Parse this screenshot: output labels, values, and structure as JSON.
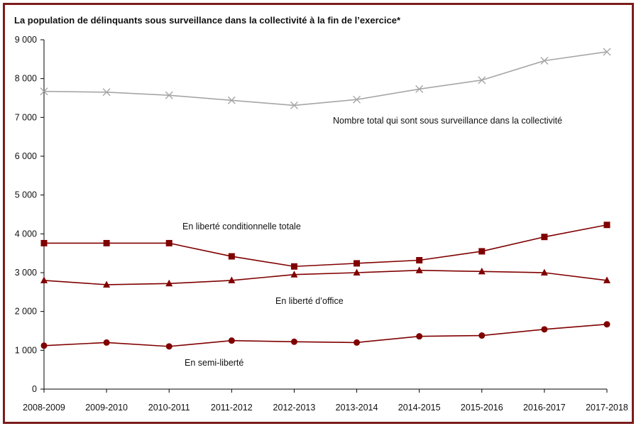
{
  "chart_data": {
    "type": "line",
    "title": "La population de délinquants sous surveillance dans la collectivité à la fin de l’exercice*",
    "xlabel": "",
    "ylabel": "",
    "ylim": [
      0,
      9000
    ],
    "y_ticks": [
      "0",
      "1 000",
      "2 000",
      "3 000",
      "4 000",
      "5 000",
      "6 000",
      "7 000",
      "8 000",
      "9 000"
    ],
    "y_tick_values": [
      0,
      1000,
      2000,
      3000,
      4000,
      5000,
      6000,
      7000,
      8000,
      9000
    ],
    "grid": false,
    "categories": [
      "2008-2009",
      "2009-2010",
      "2010-2011",
      "2011-2012",
      "2012-2013",
      "2013-2014",
      "2014-2015",
      "2015-2016",
      "2016-2017",
      "2017-2018"
    ],
    "series": [
      {
        "name": "Nombre total qui sont sous surveillance dans la collectivité",
        "marker": "x",
        "color": "#a6a6a6",
        "values": [
          7670,
          7650,
          7570,
          7440,
          7310,
          7460,
          7730,
          7960,
          8460,
          8690
        ]
      },
      {
        "name": "En liberté conditionnelle totale",
        "marker": "square",
        "color": "#800000",
        "values": [
          3760,
          3760,
          3760,
          3420,
          3160,
          3240,
          3320,
          3550,
          3920,
          4230
        ]
      },
      {
        "name": "En liberté d’office",
        "marker": "triangle",
        "color": "#800000",
        "values": [
          2800,
          2690,
          2720,
          2800,
          2950,
          3000,
          3060,
          3030,
          3000,
          2800
        ]
      },
      {
        "name": "En semi-liberté",
        "marker": "circle",
        "color": "#800000",
        "values": [
          1120,
          1200,
          1100,
          1250,
          1220,
          1200,
          1360,
          1380,
          1540,
          1670
        ]
      }
    ]
  }
}
